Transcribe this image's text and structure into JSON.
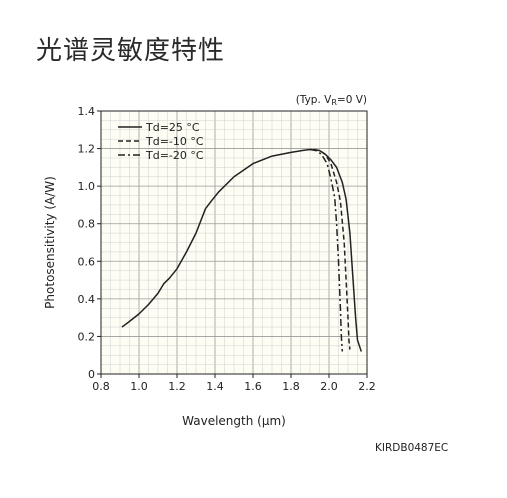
{
  "title": "光谱灵敏度特性",
  "chart_data": {
    "type": "line",
    "condition_note": "(Typ. VR=0 V)",
    "condition_prefix": "(Typ. V",
    "condition_sub": "R",
    "condition_suffix": "=0 V)",
    "xlabel": "Wavelength (μm)",
    "ylabel": "Photosensitivity (A/W)",
    "xlim": [
      0.8,
      2.2
    ],
    "ylim": [
      0,
      1.4
    ],
    "x_ticks": [
      "0.8",
      "1.0",
      "1.2",
      "1.4",
      "1.6",
      "1.8",
      "2.0",
      "2.2"
    ],
    "y_ticks": [
      "0",
      "0.2",
      "0.4",
      "0.6",
      "0.8",
      "1.0",
      "1.2",
      "1.4"
    ],
    "grid": true,
    "legend_position": "top-left",
    "code": "KIRDB0487EC",
    "series": [
      {
        "name": "Td=25 °C",
        "style": "solid",
        "x": [
          0.91,
          0.95,
          1.0,
          1.05,
          1.1,
          1.13,
          1.16,
          1.2,
          1.25,
          1.3,
          1.35,
          1.38,
          1.42,
          1.5,
          1.6,
          1.7,
          1.8,
          1.86,
          1.9,
          1.95,
          1.98,
          2.01,
          2.04,
          2.07,
          2.09,
          2.11,
          2.12,
          2.13,
          2.14,
          2.15,
          2.17
        ],
        "y": [
          0.25,
          0.28,
          0.32,
          0.37,
          0.43,
          0.48,
          0.51,
          0.56,
          0.65,
          0.75,
          0.88,
          0.92,
          0.97,
          1.05,
          1.12,
          1.16,
          1.18,
          1.19,
          1.195,
          1.19,
          1.17,
          1.14,
          1.1,
          1.02,
          0.93,
          0.75,
          0.6,
          0.45,
          0.3,
          0.18,
          0.12
        ]
      },
      {
        "name": "Td=-10 °C",
        "style": "dashed",
        "x": [
          1.92,
          1.95,
          1.98,
          2.01,
          2.04,
          2.06,
          2.08,
          2.09,
          2.1,
          2.105,
          2.11
        ],
        "y": [
          1.195,
          1.19,
          1.17,
          1.12,
          1.02,
          0.92,
          0.7,
          0.5,
          0.3,
          0.18,
          0.13
        ]
      },
      {
        "name": "Td=-20 °C",
        "style": "dashdot",
        "x": [
          1.9,
          1.93,
          1.96,
          1.99,
          2.01,
          2.03,
          2.04,
          2.05,
          2.06,
          2.065,
          2.07
        ],
        "y": [
          1.195,
          1.19,
          1.17,
          1.12,
          1.04,
          0.94,
          0.8,
          0.6,
          0.35,
          0.2,
          0.12
        ]
      }
    ]
  }
}
